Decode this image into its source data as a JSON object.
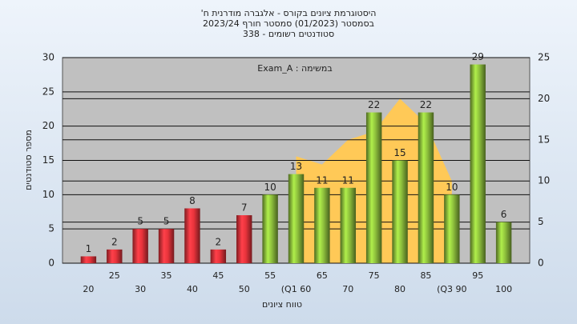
{
  "chart_data": {
    "type": "bar",
    "title": "היסטוגרמת ציונים בקורס - אלגברה מודרנית ח'",
    "subtitle": "בסמסטר (01/2023) סמסטר חורף 2023/24",
    "subtitle2": "סטודנטים רשומים - 338",
    "annotation": "במשימה : Exam_A",
    "xlabel": "טווח ציונים",
    "ylabel": "מספר סטודנטים",
    "categories": [
      "20",
      "25",
      "30",
      "35",
      "40",
      "45",
      "50",
      "55",
      "(Q1 60",
      "65",
      "70",
      "75",
      "80",
      "85",
      "(Q3 90",
      "95",
      "100"
    ],
    "values": [
      1,
      2,
      5,
      5,
      8,
      2,
      7,
      10,
      13,
      11,
      11,
      22,
      15,
      22,
      10,
      29,
      6
    ],
    "colors": [
      "#e8333b",
      "#e8333b",
      "#e8333b",
      "#e8333b",
      "#e8333b",
      "#e8333b",
      "#e8333b",
      "#8dbf3c",
      "#8dbf3c",
      "#8dbf3c",
      "#8dbf3c",
      "#8dbf3c",
      "#8dbf3c",
      "#8dbf3c",
      "#8dbf3c",
      "#8dbf3c",
      "#8dbf3c"
    ],
    "area": {
      "color": "#ffc957",
      "axis": "y2",
      "values": [
        null,
        null,
        null,
        null,
        null,
        null,
        null,
        null,
        13,
        12,
        15,
        16,
        20,
        17,
        10,
        null,
        null
      ]
    },
    "ylim": [
      0,
      30
    ],
    "yticks": [
      0,
      5,
      10,
      15,
      20,
      25,
      30
    ],
    "y2lim": [
      0,
      25
    ],
    "y2ticks": [
      0,
      5,
      10,
      15,
      20,
      25
    ],
    "grid": true
  }
}
